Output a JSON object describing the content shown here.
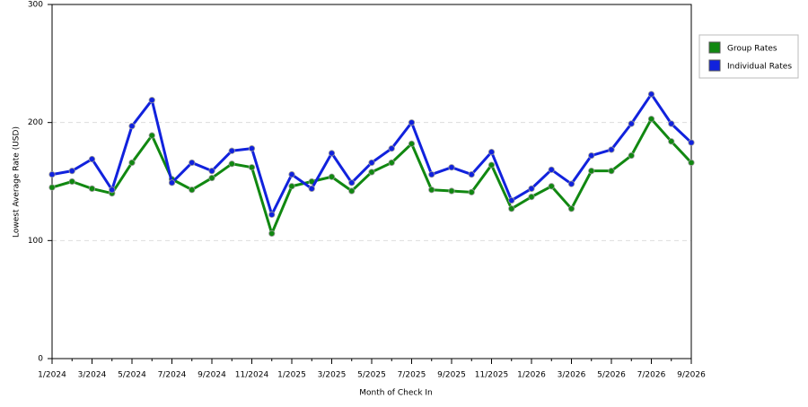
{
  "chart_data": {
    "type": "line",
    "x_label": "Month of Check In",
    "y_label": "Lowest Average Rate (USD)",
    "categories": [
      "1/2024",
      null,
      "3/2024",
      null,
      "5/2024",
      null,
      "7/2024",
      null,
      "9/2024",
      null,
      "11/2024",
      null,
      "1/2025",
      null,
      "3/2025",
      null,
      "5/2025",
      null,
      "7/2025",
      null,
      "9/2025",
      null,
      "11/2025",
      null,
      "1/2026",
      null,
      "3/2026",
      null,
      "5/2026",
      null,
      "7/2026",
      null,
      "9/2026"
    ],
    "series": [
      {
        "name": "Group Rates",
        "color": "#118811",
        "values": [
          145,
          150,
          144,
          140,
          166,
          189,
          152,
          143,
          153,
          165,
          162,
          106,
          146,
          150,
          154,
          142,
          158,
          166,
          182,
          143,
          142,
          141,
          164,
          127,
          137,
          146,
          127,
          159,
          159,
          172,
          203,
          184,
          166
        ]
      },
      {
        "name": "Individual Rates",
        "color": "#1122dd",
        "values": [
          156,
          159,
          169,
          143,
          197,
          219,
          149,
          166,
          159,
          176,
          178,
          122,
          156,
          144,
          174,
          149,
          166,
          178,
          200,
          156,
          162,
          156,
          175,
          134,
          144,
          160,
          148,
          172,
          177,
          199,
          224,
          199,
          183
        ]
      }
    ],
    "ylim": [
      0,
      300
    ],
    "yticks": [
      0,
      100,
      200,
      300
    ],
    "grid": true,
    "legend": "right"
  }
}
